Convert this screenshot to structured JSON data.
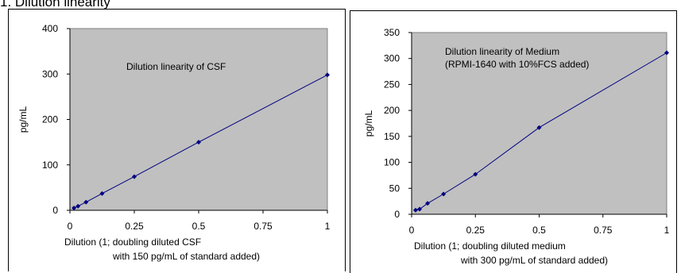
{
  "heading": "1. Dilution linearity",
  "chart_data": [
    {
      "type": "line",
      "annotation_lines": [
        "Dilution linearity of CSF"
      ],
      "xlabel_lines": [
        "Dilution (1; doubling diluted CSF",
        "with 150 pg/mL of standard added)"
      ],
      "ylabel": "pg/mL",
      "xlim": [
        0,
        1
      ],
      "ylim": [
        0,
        400
      ],
      "xticks": [
        0,
        0.25,
        0.5,
        0.75,
        1
      ],
      "xtick_labels": [
        "0",
        "0.25",
        "0.5",
        "0.75",
        "1"
      ],
      "yticks": [
        0,
        100,
        200,
        300,
        400
      ],
      "ytick_labels": [
        "0",
        "100",
        "200",
        "300",
        "400"
      ],
      "grid": false,
      "plot_background": "#c0c0c0",
      "line_color": "#000080",
      "series": [
        {
          "x": [
            0.015625,
            0.03125,
            0.0625,
            0.125,
            0.25,
            0.5,
            1
          ],
          "y": [
            5,
            9,
            18,
            37,
            74,
            150,
            298
          ]
        }
      ]
    },
    {
      "type": "line",
      "annotation_lines": [
        "Dilution linearity of Medium",
        "(RPMI-1640 with 10%FCS added)"
      ],
      "xlabel_lines": [
        "Dilution (1; doubling diluted medium",
        "with 300 pg/mL of standard added)"
      ],
      "ylabel": "pg/mL",
      "xlim": [
        0,
        1
      ],
      "ylim": [
        0,
        350
      ],
      "xticks": [
        0,
        0.25,
        0.5,
        0.75,
        1
      ],
      "xtick_labels": [
        "0",
        "0.25",
        "0.5",
        "0.75",
        "1"
      ],
      "yticks": [
        0,
        50,
        100,
        150,
        200,
        250,
        300,
        350
      ],
      "ytick_labels": [
        "0",
        "50",
        "100",
        "150",
        "200",
        "250",
        "300",
        "350"
      ],
      "grid": false,
      "plot_background": "#c0c0c0",
      "line_color": "#000080",
      "series": [
        {
          "x": [
            0.015625,
            0.03125,
            0.0625,
            0.125,
            0.25,
            0.5,
            1
          ],
          "y": [
            8,
            10,
            21,
            39,
            77,
            167,
            311
          ]
        }
      ]
    }
  ]
}
